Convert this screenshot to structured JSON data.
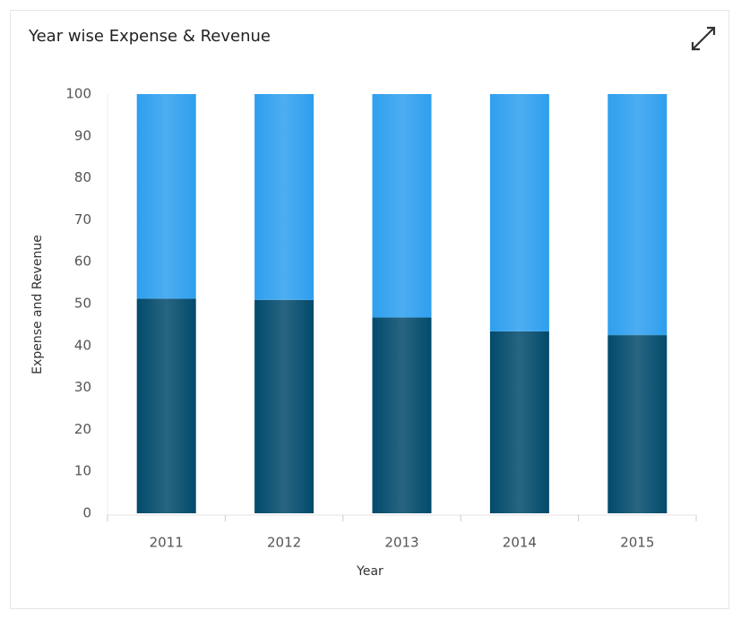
{
  "chart_data": {
    "type": "stacked_bar",
    "title": "Year wise Expense & Revenue",
    "x_label": "Year",
    "y_label": "Expense and Revenue",
    "categories": [
      "2011",
      "2012",
      "2013",
      "2014",
      "2015"
    ],
    "series": [
      {
        "color": "#024a6b",
        "values": [
          51.2,
          50.9,
          46.7,
          43.4,
          42.5
        ]
      },
      {
        "color": "#2e9fee",
        "values": [
          48.8,
          49.1,
          53.3,
          56.6,
          57.5
        ]
      }
    ],
    "ylim": [
      0,
      100
    ],
    "yticks": [
      0,
      10,
      20,
      30,
      40,
      50,
      60,
      70,
      80,
      90,
      100
    ],
    "grid": false
  }
}
